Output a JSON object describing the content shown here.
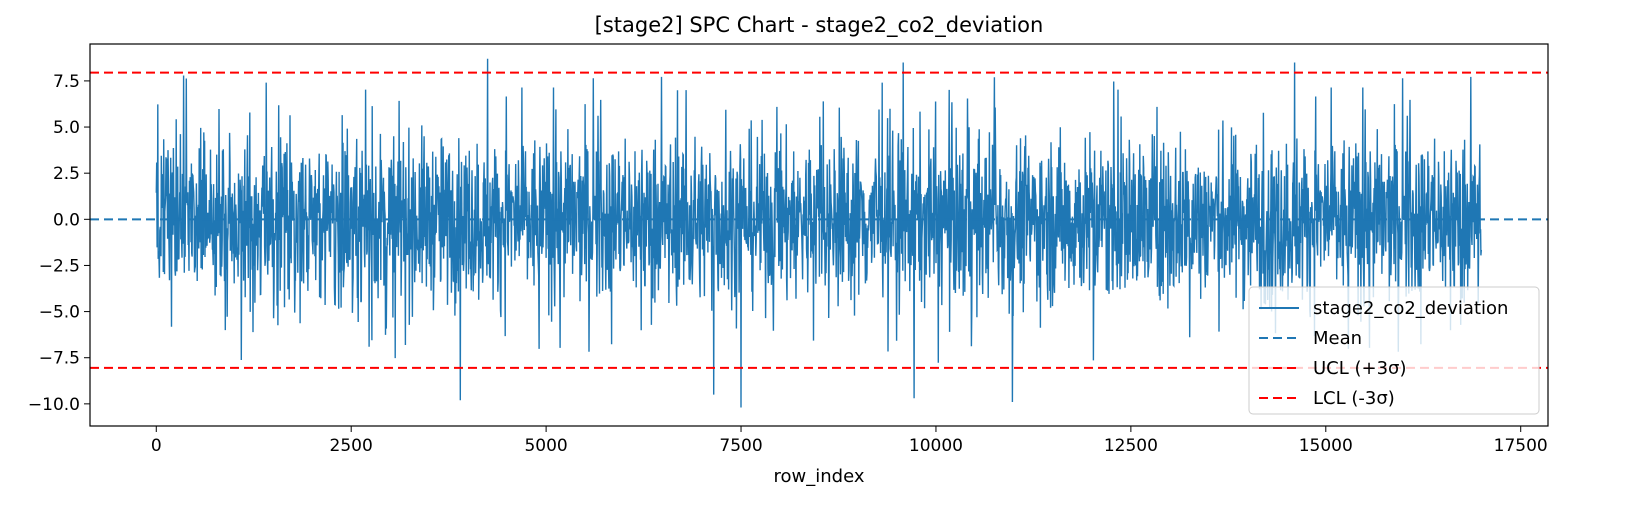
{
  "chart_data": {
    "type": "line",
    "title": "[stage2] SPC Chart - stage2_co2_deviation",
    "xlabel": "row_index",
    "ylabel": "",
    "xlim": [
      -850,
      17850
    ],
    "ylim": [
      -11.2,
      9.5
    ],
    "xticks": [
      0,
      2500,
      5000,
      7500,
      10000,
      12500,
      15000,
      17500
    ],
    "xtick_labels": [
      "0",
      "2500",
      "5000",
      "7500",
      "10000",
      "12500",
      "15000",
      "17500"
    ],
    "yticks": [
      7.5,
      5.0,
      2.5,
      0.0,
      -2.5,
      -5.0,
      -7.5,
      -10.0
    ],
    "ytick_labels": [
      "7.5",
      "5.0",
      "2.5",
      "0.0",
      "−2.5",
      "−5.0",
      "−7.5",
      "−10.0"
    ],
    "grid": false,
    "legend_position": "lower-right",
    "n_points": 17000,
    "series": [
      {
        "name": "stage2_co2_deviation",
        "color": "#1f77b4",
        "style": "solid",
        "x_range": [
          0,
          16999
        ],
        "typical_range": [
          -5.5,
          5.5
        ],
        "extremes": [
          {
            "x": 4250,
            "y": 8.7
          },
          {
            "x": 9580,
            "y": 8.5
          },
          {
            "x": 14600,
            "y": 8.5
          },
          {
            "x": 7500,
            "y": -10.2
          },
          {
            "x": 3900,
            "y": -9.8
          },
          {
            "x": 10980,
            "y": -9.9
          },
          {
            "x": 9720,
            "y": -9.7
          },
          {
            "x": 7150,
            "y": -9.5
          }
        ]
      },
      {
        "name": "Mean",
        "color": "#1f77b4",
        "style": "dashed",
        "y": 0.0
      },
      {
        "name": "UCL (+3σ)",
        "color": "#ff0000",
        "style": "dashed",
        "y": 7.95
      },
      {
        "name": "LCL (-3σ)",
        "color": "#ff0000",
        "style": "dashed",
        "y": -8.05
      }
    ]
  }
}
